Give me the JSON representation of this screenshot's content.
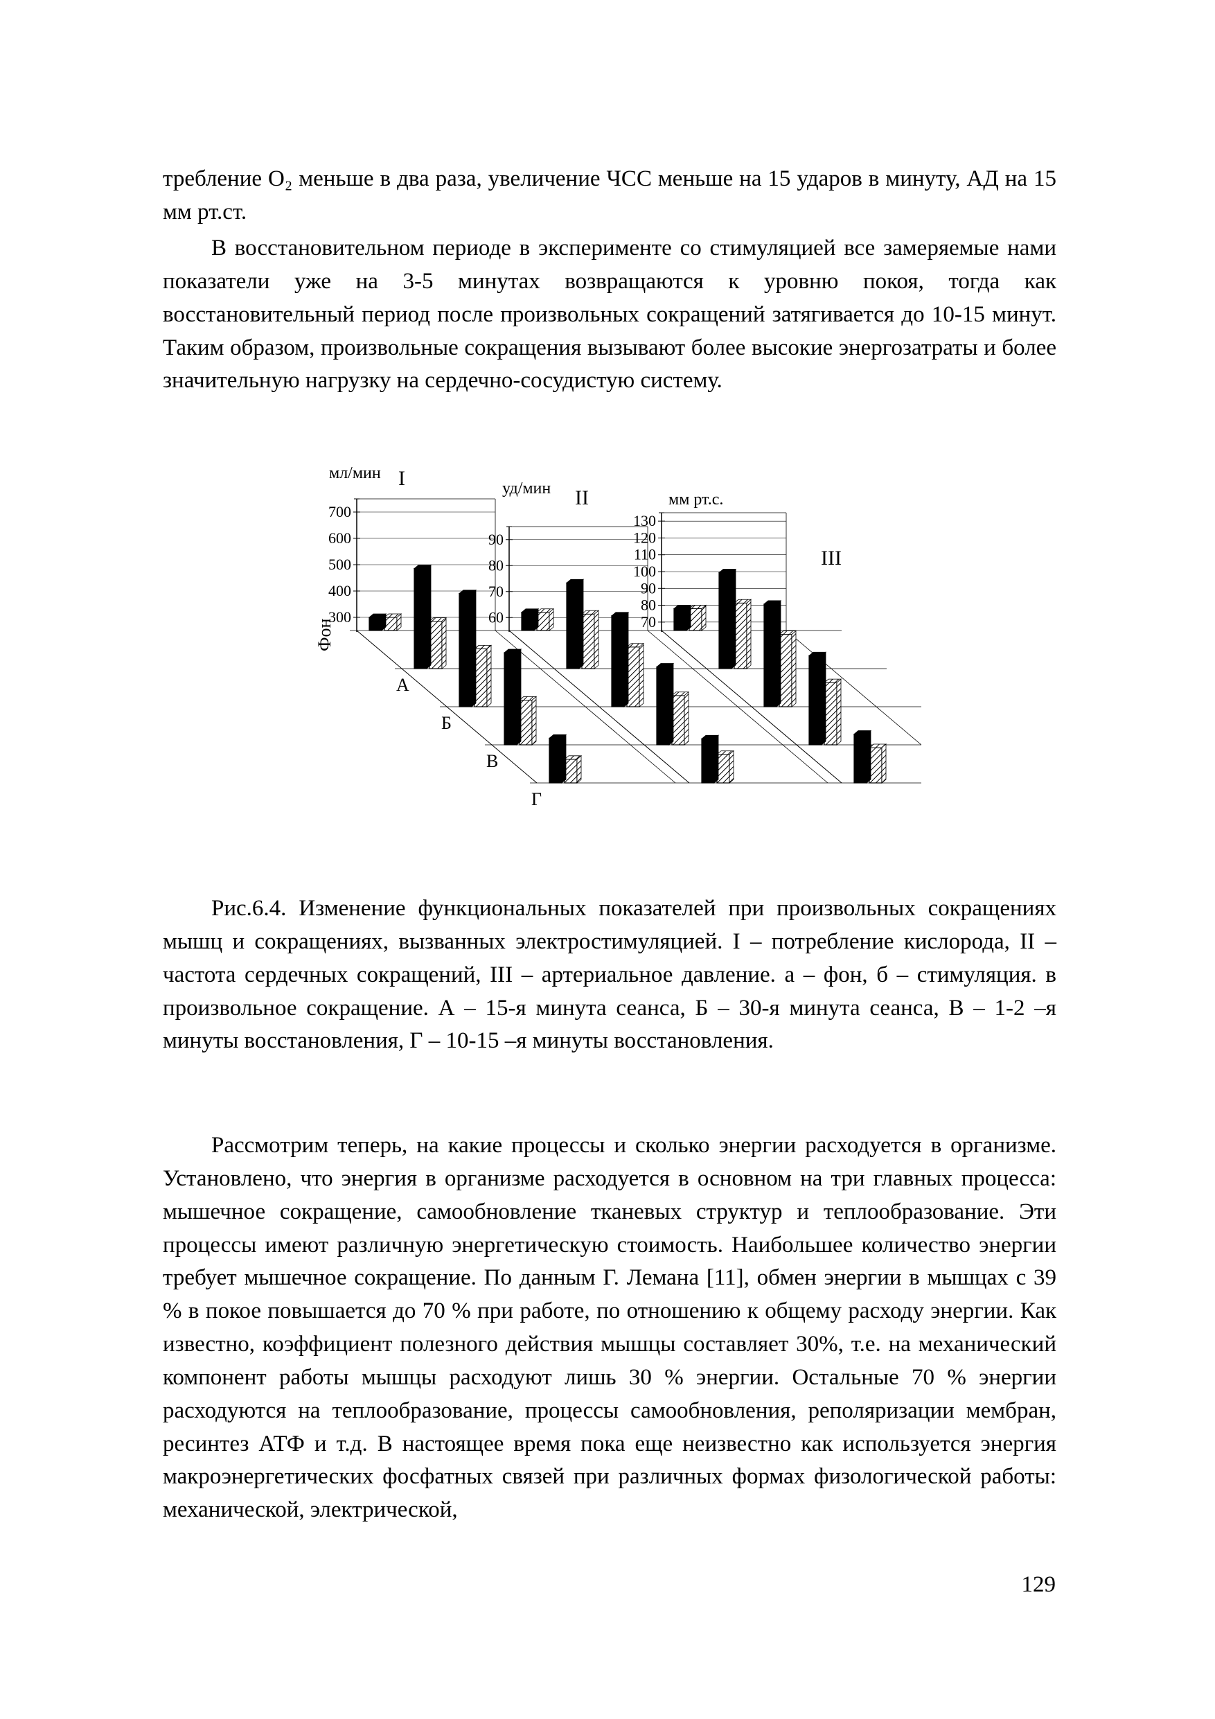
{
  "paragraphs": {
    "p1": "требление O₂ меньше в два раза, увеличение ЧСС меньше на 15 ударов в минуту, АД на 15 мм рт.ст.",
    "p2": "В восстановительном периоде в эксперименте со стимуляцией все замеряемые нами показатели уже на 3-5 минутах возвращаются к уровню покоя, тогда как восстановительный период после произвольных сокращений затягивается до 10-15 минут. Таким образом, произвольные сокращения вызывают более высокие энергозатраты и более значительную нагрузку на сердечно-сосудистую систему.",
    "caption": "Рис.6.4. Изменение функциональных показателей при произвольных сокращениях мышц и сокращениях, вызванных электростимуляцией. I – потребление кислорода, II – частота сердечных сокращений, III – артериальное давление. а – фон, б – стимуляция. в произвольное сокращение. А – 15-я минута сеанса, Б – 30-я минута сеанса, В – 1-2 –я минуты восстановления, Г – 10-15 –я минуты восстановления.",
    "p3": "Рассмотрим теперь, на какие процессы и сколько энергии расходуется в организме. Установлено, что энергия в организме расходуется в основном на три главных процесса: мышечное сокращение, самообновление тканевых структур и теплообразование. Эти процессы имеют различную энергетическую стоимость. Наибольшее количество энергии требует мышечное сокращение. По данным Г. Лемана [11], обмен энергии в мышцах с 39 % в покое повышается до 70 % при работе, по отношению к общему расходу энергии. Как известно, коэффициент полезного действия мышцы составляет 30%, т.е. на механический компонент работы мышцы расходуют лишь 30 % энергии. Остальные 70 % энергии расходуются на теплообразование, процессы самообновления, реполяризации мембран, ресинтез АТФ и т.д. В настоящее время пока еще неизвестно как используется энергия макроэнергетических фосфатных связей при различных формах физологической работы: механической, электрической,"
  },
  "page_number": "129",
  "chart": {
    "type": "3d-bar-perspective",
    "panels": [
      "I",
      "II",
      "III"
    ],
    "panel_units": {
      "I": "мл/мин",
      "II": "уд/мин",
      "III": "мм рт.с."
    },
    "depth_categories": [
      "Фон",
      "А",
      "Б",
      "В",
      "Г"
    ],
    "axis1": {
      "ticks": [
        300,
        400,
        500,
        600,
        700
      ],
      "range": [
        250,
        750
      ]
    },
    "axis2": {
      "ticks": [
        60,
        70,
        80,
        90
      ],
      "range": [
        55,
        95
      ]
    },
    "axis3": {
      "ticks": [
        70,
        80,
        90,
        100,
        110,
        120,
        130
      ],
      "range": [
        65,
        135
      ]
    },
    "colors": {
      "bar_solid": "#000000",
      "bar_hatched_stroke": "#000000",
      "bar_open_fill": "#ffffff",
      "axis_stroke": "#000000",
      "background": "#ffffff"
    },
    "stroke_width_axis": 1.5,
    "stroke_width_bar": 1.2,
    "font_family": "Times New Roman",
    "label_fontsize_units": 24,
    "label_fontsize_roman": 30,
    "label_fontsize_ticks": 22,
    "series": {
      "I": {
        "solid": {
          "Фон": 300,
          "А": 630,
          "Б": 680,
          "В": 600,
          "Г": 420
        },
        "hatched": {
          "Фон": 300,
          "А": 430,
          "Б": 470,
          "В": 420,
          "Г": 340
        }
      },
      "II": {
        "solid": {
          "Фон": 62,
          "А": 88,
          "Б": 90,
          "В": 85,
          "Г": 72
        },
        "hatched": {
          "Фон": 62,
          "А": 76,
          "Б": 78,
          "В": 74,
          "Г": 66
        }
      },
      "III": {
        "solid": {
          "Фон": 78,
          "А": 122,
          "Б": 126,
          "В": 118,
          "Г": 94
        },
        "hatched": {
          "Фон": 78,
          "А": 104,
          "Б": 108,
          "В": 102,
          "Г": 86
        }
      }
    }
  }
}
